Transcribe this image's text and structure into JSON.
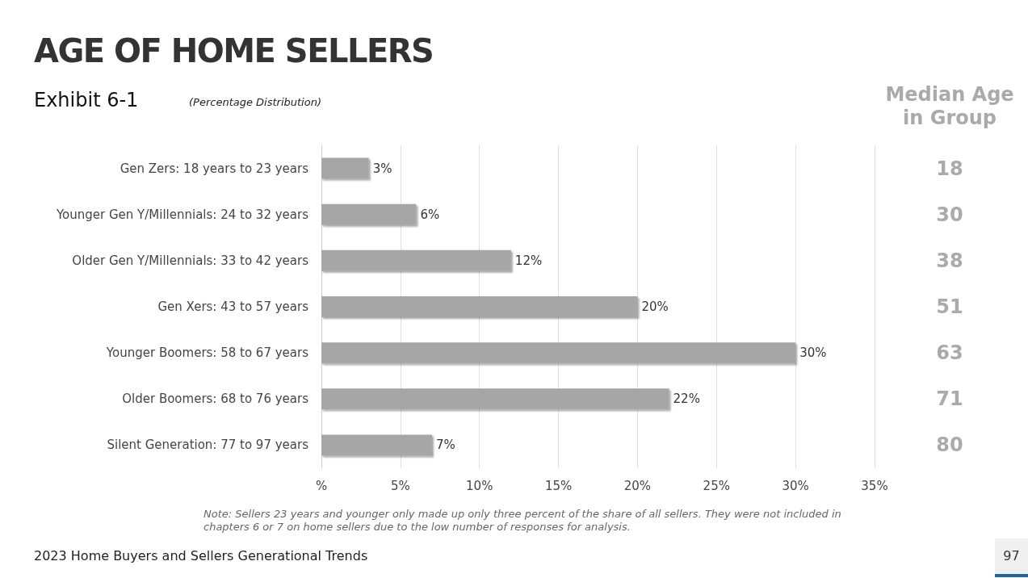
{
  "chart_data": {
    "type": "bar",
    "orientation": "horizontal",
    "title": "AGE OF HOME SELLERS",
    "subtitle": "Exhibit 6-1",
    "categories": [
      "Gen Zers: 18 years to 23 years",
      "Younger Gen Y/Millennials: 24 to 32 years",
      "Older Gen Y/Millennials: 33 to 42 years",
      "Gen Xers: 43 to 57 years",
      "Younger Boomers: 58 to 67 years",
      "Older Boomers: 68 to 76 years",
      "Silent Generation: 77 to 97 years"
    ],
    "values": [
      3,
      6,
      12,
      20,
      30,
      22,
      7
    ],
    "value_labels": [
      "3%",
      "6%",
      "12%",
      "20%",
      "30%",
      "22%",
      "7%"
    ],
    "color": "#a6a6a6",
    "y2label": "Median Age in Group",
    "y2_categories": [
      "18",
      "30",
      "38",
      "51",
      "63",
      "71",
      "80"
    ],
    "xlim": [
      0,
      35
    ],
    "xticks": [
      {
        "value": 0,
        "label": "%"
      },
      {
        "value": 5,
        "label": "5%"
      },
      {
        "value": 10,
        "label": "10%"
      },
      {
        "value": 15,
        "label": "15%"
      },
      {
        "value": 20,
        "label": "20%"
      },
      {
        "value": 25,
        "label": "25%"
      },
      {
        "value": 30,
        "label": "30%"
      },
      {
        "value": 35,
        "label": "35%"
      }
    ],
    "grid": "x",
    "annotations": [
      "(Percentage Distribution)",
      "Note: Sellers 23 years and younger only made up only three percent of the share of all sellers. They were not included in chapters 6 or 7 on home sellers due to the low number of responses for analysis.",
      "2023 Home Buyers and Sellers Generational Trends",
      "97"
    ]
  }
}
